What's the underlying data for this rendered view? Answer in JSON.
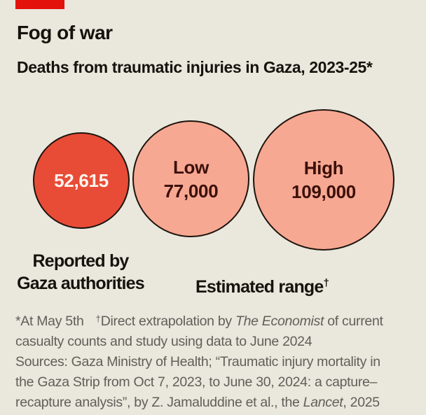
{
  "colors": {
    "background": "#eae7dd",
    "brand_red_tab": "#e3120b",
    "bubble_reported_fill": "#e84c37",
    "bubble_estimated_fill": "#f7a892",
    "bubble_outline": "#1c140d",
    "bubble_reported_text": "#fdf4ed",
    "bubble_estimated_text": "#3b100a",
    "heading_text": "#16130d",
    "footnote_text": "#615f58"
  },
  "header": {
    "title": "Fog of war",
    "subtitle": "Deaths from traumatic injuries in Gaza, 2023-25*"
  },
  "chart_data": {
    "type": "bubble",
    "title": "Fog of war",
    "subtitle": "Deaths from traumatic injuries in Gaza, 2023-25*",
    "unit": "deaths",
    "series": [
      {
        "name": "Reported by Gaza authorities",
        "bubble_label": "",
        "value": 52615,
        "value_display": "52,615",
        "fill": "#e84c37"
      },
      {
        "name": "Estimated range — low",
        "bubble_label": "Low",
        "value": 77000,
        "value_display": "77,000",
        "fill": "#f7a892"
      },
      {
        "name": "Estimated range — high",
        "bubble_label": "High",
        "value": 109000,
        "value_display": "109,000",
        "fill": "#f7a892"
      }
    ]
  },
  "captions": {
    "reported_line1": "Reported by",
    "reported_line2": "Gaza authorities",
    "estimated": "Estimated range",
    "estimated_dagger": "†"
  },
  "footnotes": {
    "line1_star": "*At May 5th",
    "line1_dagger": "†",
    "line1_a": "Direct extrapolation by ",
    "line1_italic": "The Economist",
    "line1_b": " of current",
    "line2": "casualty counts and study using data to June 2024",
    "line3": "Sources: Gaza Ministry of Health; “Traumatic injury mortality in",
    "line4": "the Gaza Strip from Oct 7, 2023, to June 30, 2024: a capture–",
    "line5_a": "recapture analysis”, by Z. Jamaluddine et al., the ",
    "line5_italic": "Lancet",
    "line5_b": ", 2025"
  }
}
